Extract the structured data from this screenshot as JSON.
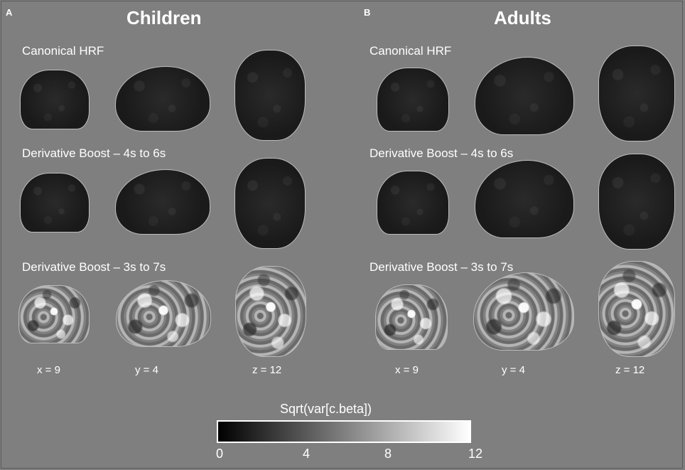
{
  "panels": [
    {
      "letter": "A",
      "title": "Children",
      "rows": [
        "Canonical HRF",
        "Derivative Boost – 4s to 6s",
        "Derivative Boost – 3s to 7s"
      ]
    },
    {
      "letter": "B",
      "title": "Adults",
      "rows": [
        "Canonical HRF",
        "Derivative Boost – 4s to 6s",
        "Derivative Boost – 3s to 7s"
      ]
    }
  ],
  "slice_labels": [
    "x = 9",
    "y = 4",
    "z = 12"
  ],
  "colorbar": {
    "title": "Sqrt(var[c.beta])",
    "ticks": [
      "0",
      "4",
      "8",
      "12"
    ],
    "min_color": "#000000",
    "max_color": "#ffffff"
  },
  "colors": {
    "background": "#7f7f7f",
    "text": "#ffffff"
  }
}
